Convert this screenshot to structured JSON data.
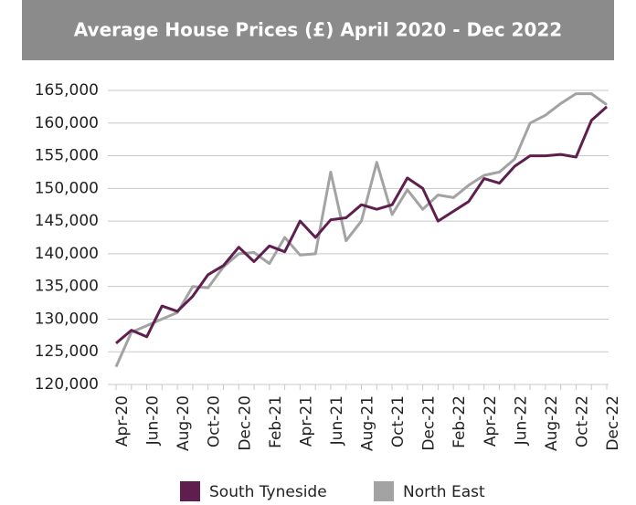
{
  "chart_data": {
    "type": "line",
    "title": "Average House Prices (£) April 2020 - Dec 2022",
    "categories": [
      "Apr-20",
      null,
      "Jun-20",
      null,
      "Aug-20",
      null,
      "Oct-20",
      null,
      "Dec-20",
      null,
      "Feb-21",
      null,
      "Apr-21",
      null,
      "Jun-21",
      null,
      "Aug-21",
      null,
      "Oct-21",
      null,
      "Dec-21",
      null,
      "Feb-22",
      null,
      "Apr-22",
      null,
      "Jun-22",
      null,
      "Aug-22",
      null,
      "Oct-22",
      null,
      "Dec-22"
    ],
    "series": [
      {
        "name": "South Tyneside",
        "color": "#5e1f4e",
        "values": [
          126300,
          128300,
          127300,
          132000,
          131200,
          133500,
          136800,
          138200,
          141000,
          138800,
          141200,
          140300,
          145000,
          142500,
          145200,
          145500,
          147500,
          146800,
          147500,
          151600,
          150000,
          145000,
          146500,
          148000,
          151500,
          150800,
          153400,
          155000,
          155000,
          155200,
          154800,
          160400,
          162500
        ]
      },
      {
        "name": "North East",
        "color": "#a3a3a3",
        "values": [
          122700,
          128000,
          129000,
          130000,
          131000,
          135000,
          134800,
          138000,
          140000,
          140200,
          138500,
          142500,
          139800,
          140000,
          152500,
          142000,
          145000,
          154000,
          146000,
          149800,
          146800,
          149000,
          148600,
          150500,
          152000,
          152500,
          154500,
          160000,
          161200,
          163000,
          164500,
          164500,
          162800
        ]
      }
    ],
    "ylim": [
      120000,
      165000
    ],
    "yticks": [
      {
        "value": 120000,
        "label": "120,000"
      },
      {
        "value": 125000,
        "label": "125,000"
      },
      {
        "value": 130000,
        "label": "130,000"
      },
      {
        "value": 135000,
        "label": "135,000"
      },
      {
        "value": 140000,
        "label": "140,000"
      },
      {
        "value": 145000,
        "label": "145,000"
      },
      {
        "value": 150000,
        "label": "150,000"
      },
      {
        "value": 155000,
        "label": "155,000"
      },
      {
        "value": 160000,
        "label": "160,000"
      },
      {
        "value": 165000,
        "label": "165,000"
      }
    ],
    "grid": true,
    "legend": "bottom"
  }
}
